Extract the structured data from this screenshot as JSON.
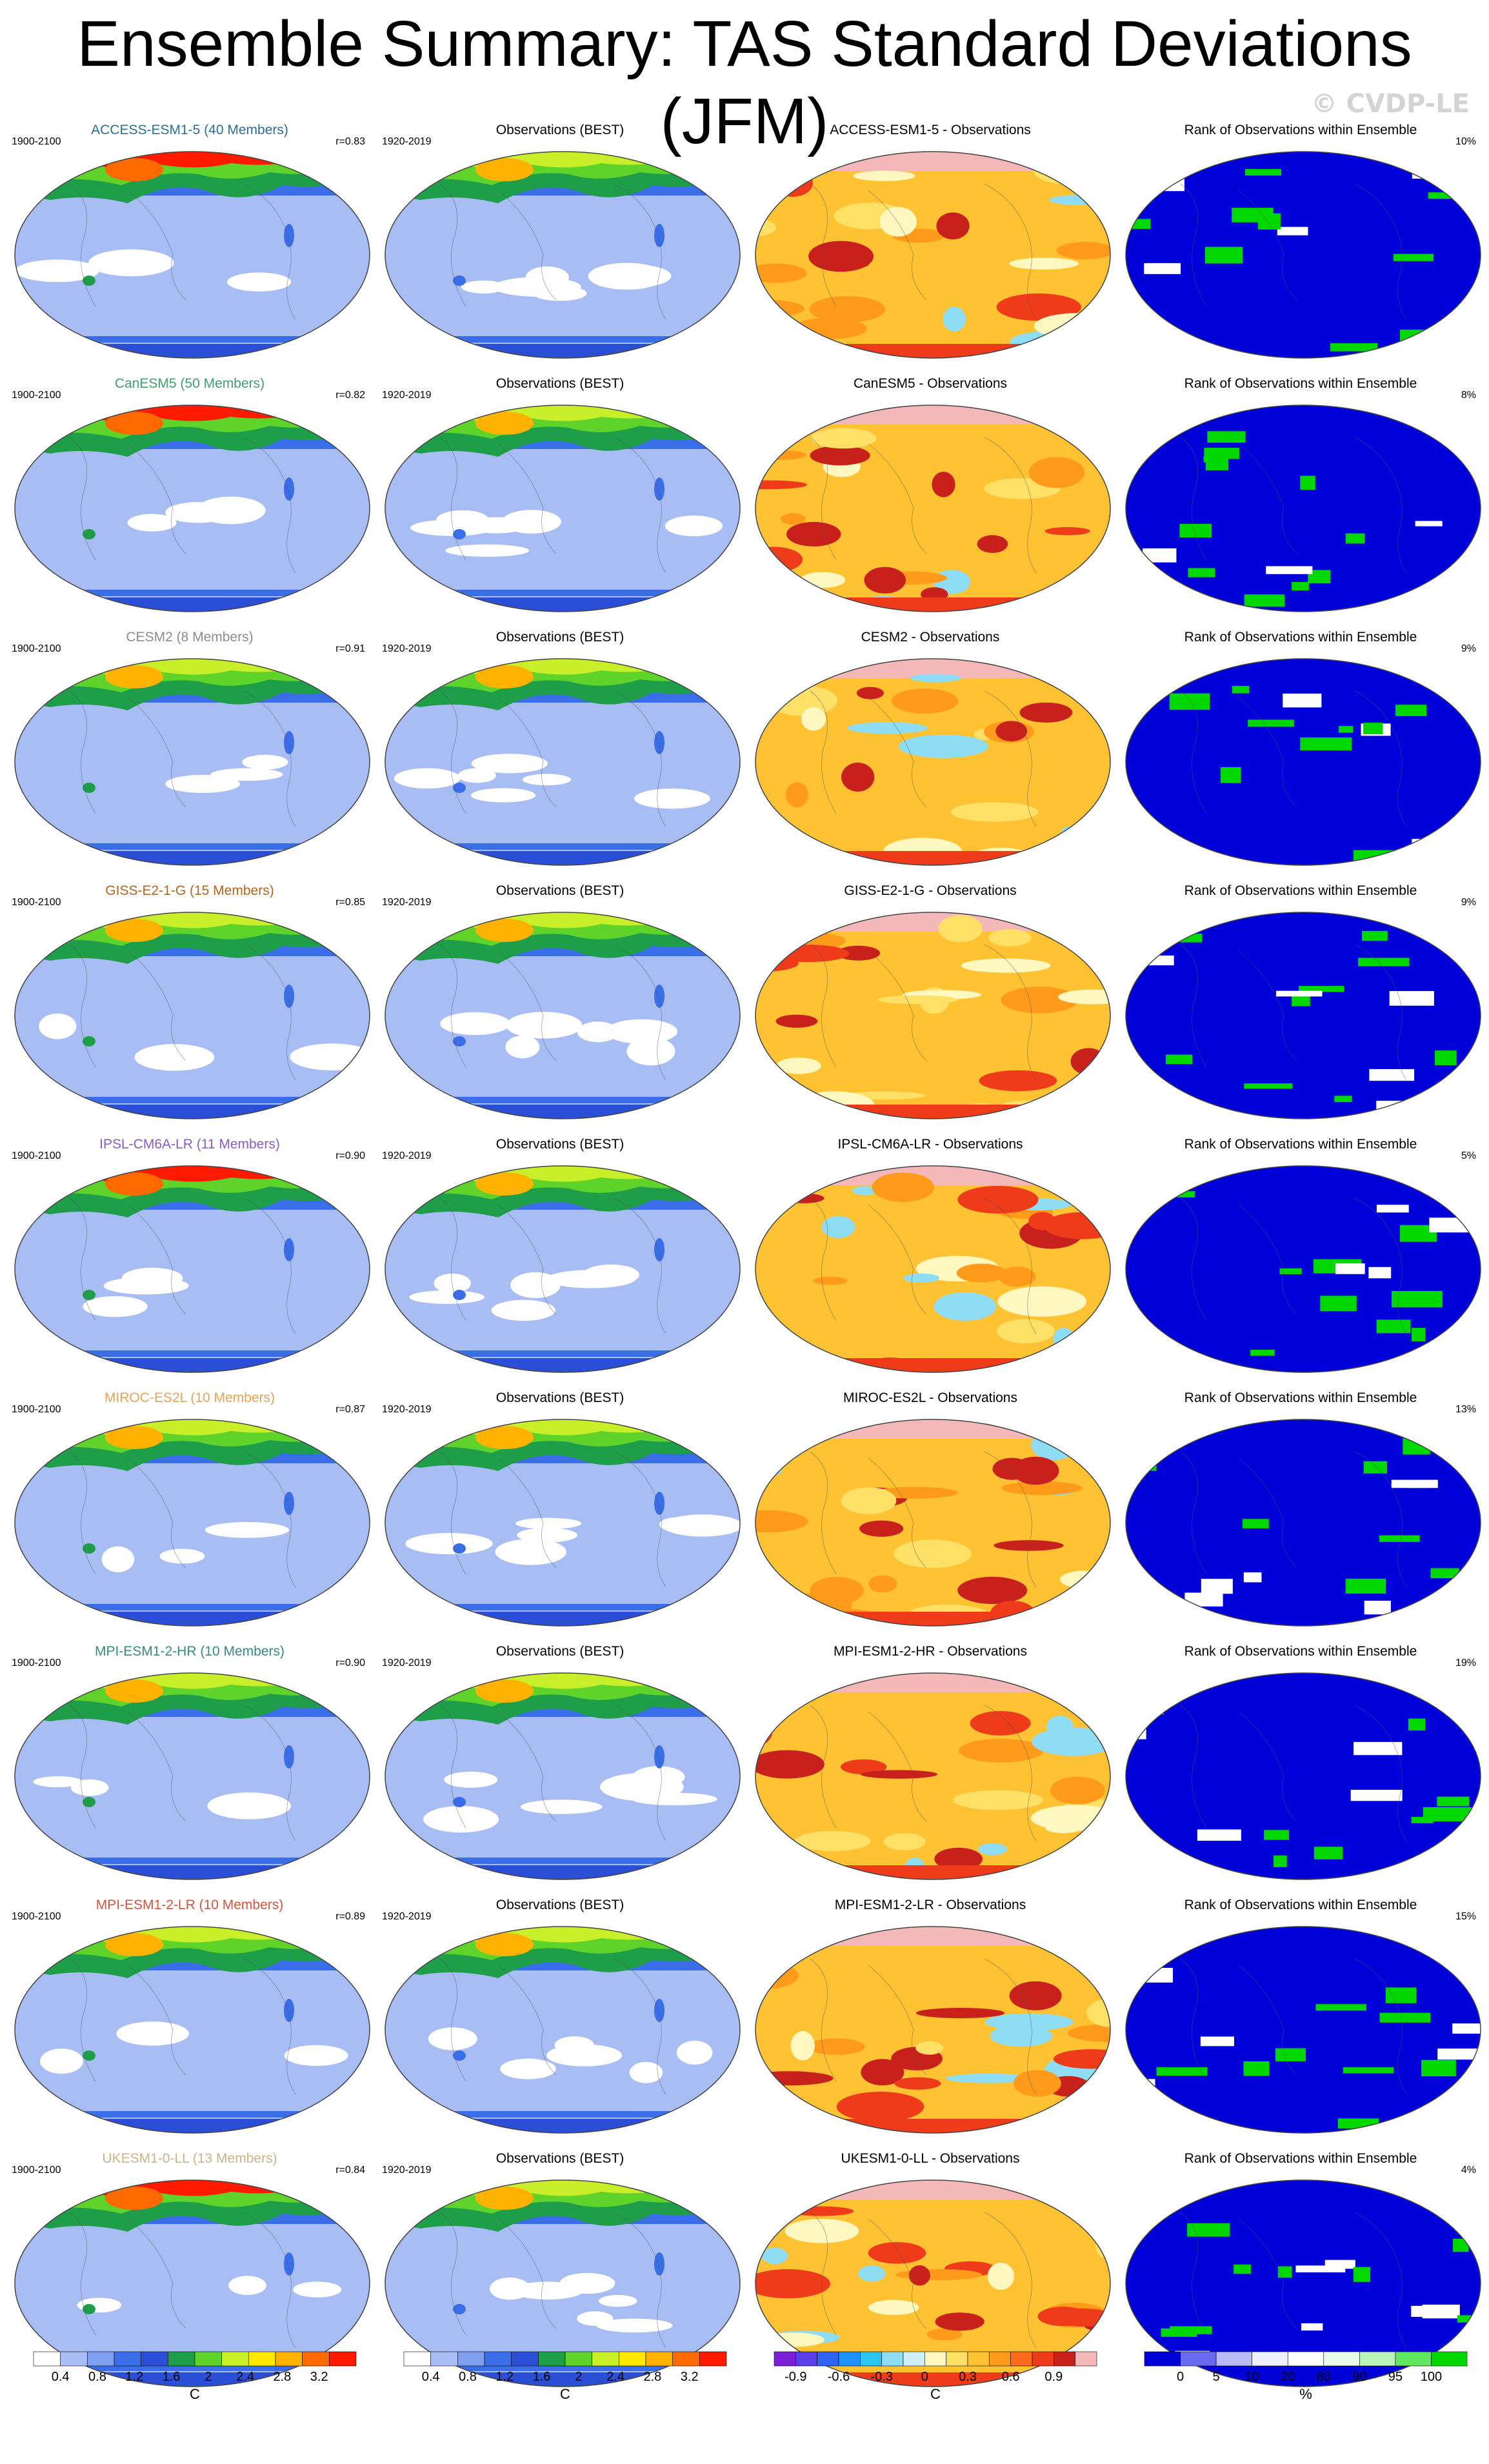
{
  "title": "Ensemble Summary: TAS Standard Deviations (JFM)",
  "watermark": "© CVDP-LE",
  "obs_title": "Observations (BEST)",
  "rank_title": "Rank of Observations within Ensemble",
  "rows": [
    {
      "model_title": "ACCESS-ESM1-5 (40 Members)",
      "model_color": "#2a6f97",
      "period_model": "1900-2100",
      "r": "r=0.83",
      "period_obs": "1920-2019",
      "diff_title": "ACCESS-ESM1-5 - Observations",
      "rank_pct": "10%"
    },
    {
      "model_title": "CanESM5 (50 Members)",
      "model_color": "#3f9f6f",
      "period_model": "1900-2100",
      "r": "r=0.82",
      "period_obs": "1920-2019",
      "diff_title": "CanESM5 - Observations",
      "rank_pct": "8%"
    },
    {
      "model_title": "CESM2 (8 Members)",
      "model_color": "#8c8c8c",
      "period_model": "1900-2100",
      "r": "r=0.91",
      "period_obs": "1920-2019",
      "diff_title": "CESM2 - Observations",
      "rank_pct": "9%"
    },
    {
      "model_title": "GISS-E2-1-G (15 Members)",
      "model_color": "#b5651d",
      "period_model": "1900-2100",
      "r": "r=0.85",
      "period_obs": "1920-2019",
      "diff_title": "GISS-E2-1-G - Observations",
      "rank_pct": "9%"
    },
    {
      "model_title": "IPSL-CM6A-LR (11 Members)",
      "model_color": "#8a5cc7",
      "period_model": "1900-2100",
      "r": "r=0.90",
      "period_obs": "1920-2019",
      "diff_title": "IPSL-CM6A-LR - Observations",
      "rank_pct": "5%"
    },
    {
      "model_title": "MIROC-ES2L (10 Members)",
      "model_color": "#e8a25a",
      "period_model": "1900-2100",
      "r": "r=0.87",
      "period_obs": "1920-2019",
      "diff_title": "MIROC-ES2L - Observations",
      "rank_pct": "13%"
    },
    {
      "model_title": "MPI-ESM1-2-HR (10 Members)",
      "model_color": "#3a8a7a",
      "period_model": "1900-2100",
      "r": "r=0.90",
      "period_obs": "1920-2019",
      "diff_title": "MPI-ESM1-2-HR - Observations",
      "rank_pct": "19%"
    },
    {
      "model_title": "MPI-ESM1-2-LR (10 Members)",
      "model_color": "#d2553c",
      "period_model": "1900-2100",
      "r": "r=0.89",
      "period_obs": "1920-2019",
      "diff_title": "MPI-ESM1-2-LR - Observations",
      "rank_pct": "15%"
    },
    {
      "model_title": "UKESM1-0-LL (13 Members)",
      "model_color": "#c9b48a",
      "period_model": "1900-2100",
      "r": "r=0.84",
      "period_obs": "1920-2019",
      "diff_title": "UKESM1-0-LL - Observations",
      "rank_pct": "4%"
    }
  ],
  "colorbars": [
    {
      "labels": [
        "0.4",
        "0.8",
        "1.2",
        "1.6",
        "2",
        "2.4",
        "2.8",
        "3.2"
      ],
      "unit": "C",
      "colors": [
        "#ffffff",
        "#a9bdf5",
        "#7f9ff0",
        "#3a6ee8",
        "#2a4fd6",
        "#1f9e4a",
        "#5fd32a",
        "#c8ef2a",
        "#ffe800",
        "#ffb300",
        "#ff6a00",
        "#ff1a00"
      ]
    },
    {
      "labels": [
        "0.4",
        "0.8",
        "1.2",
        "1.6",
        "2",
        "2.4",
        "2.8",
        "3.2"
      ],
      "unit": "C",
      "colors": [
        "#ffffff",
        "#a9bdf5",
        "#7f9ff0",
        "#3a6ee8",
        "#2a4fd6",
        "#1f9e4a",
        "#5fd32a",
        "#c8ef2a",
        "#ffe800",
        "#ffb300",
        "#ff6a00",
        "#ff1a00"
      ]
    },
    {
      "labels": [
        "-0.9",
        "-0.6",
        "-0.3",
        "0",
        "0.3",
        "0.6",
        "0.9"
      ],
      "unit": "C",
      "colors": [
        "#7a1fd6",
        "#5a3ee8",
        "#2f63f0",
        "#1e90ff",
        "#2ec4f0",
        "#8fdcf5",
        "#cfeef8",
        "#fff7c0",
        "#ffe066",
        "#ffc233",
        "#ff9a1a",
        "#ff6a1a",
        "#ee3b1a",
        "#c8201a",
        "#f4b8b8"
      ]
    },
    {
      "labels": [
        "0",
        "5",
        "10",
        "20",
        "80",
        "90",
        "95",
        "100"
      ],
      "unit": "%",
      "colors": [
        "#0000d8",
        "#6a6af0",
        "#b9b9f5",
        "#eeeefc",
        "#ffffff",
        "#e8fbe8",
        "#b9f3b9",
        "#5fe85f",
        "#00d800"
      ]
    }
  ]
}
